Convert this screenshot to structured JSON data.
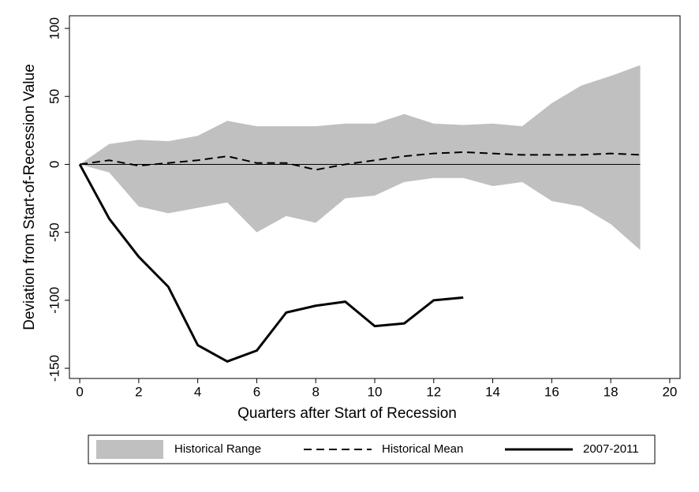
{
  "chart_data": {
    "type": "line",
    "x_label": "Quarters after Start of Recession",
    "y_label": "Deviation from Start-of-Recession Value",
    "x": [
      0,
      1,
      2,
      3,
      4,
      5,
      6,
      7,
      8,
      9,
      10,
      11,
      12,
      13,
      14,
      15,
      16,
      17,
      18,
      19
    ],
    "series": [
      {
        "name": "Historical Range",
        "color": "#c0c0c0",
        "upper": [
          0,
          15,
          18,
          17,
          21,
          32,
          28,
          28,
          28,
          30,
          30,
          37,
          30,
          29,
          30,
          28,
          45,
          58,
          65,
          73
        ],
        "lower": [
          0,
          -6,
          -31,
          -36,
          -32,
          -28,
          -50,
          -38,
          -43,
          -25,
          -23,
          -13,
          -10,
          -10,
          -16,
          -13,
          -27,
          -31,
          -44,
          -63
        ]
      },
      {
        "name": "Historical Mean",
        "color": "#000000",
        "dashed": true,
        "values": [
          0,
          3,
          -1,
          1,
          3,
          6,
          1,
          1,
          -4,
          0,
          3,
          6,
          8,
          9,
          8,
          7,
          7,
          7,
          8,
          7
        ]
      },
      {
        "name": "2007-2011",
        "color": "#000000",
        "dashed": false,
        "values": [
          0,
          -40,
          -68,
          -90,
          -133,
          -145,
          -137,
          -109,
          -104,
          -101,
          -119,
          -117,
          -100,
          -98,
          null,
          null,
          null,
          null,
          null,
          null
        ]
      }
    ],
    "reference_line": 0,
    "xlim": [
      -0.35,
      20.35
    ],
    "ylim": [
      -157.5,
      109.3
    ],
    "xticks": [
      0,
      2,
      4,
      6,
      8,
      10,
      12,
      14,
      16,
      18,
      20
    ],
    "yticks": [
      -150,
      -100,
      -50,
      0,
      50,
      100
    ],
    "legend": "bottom"
  }
}
